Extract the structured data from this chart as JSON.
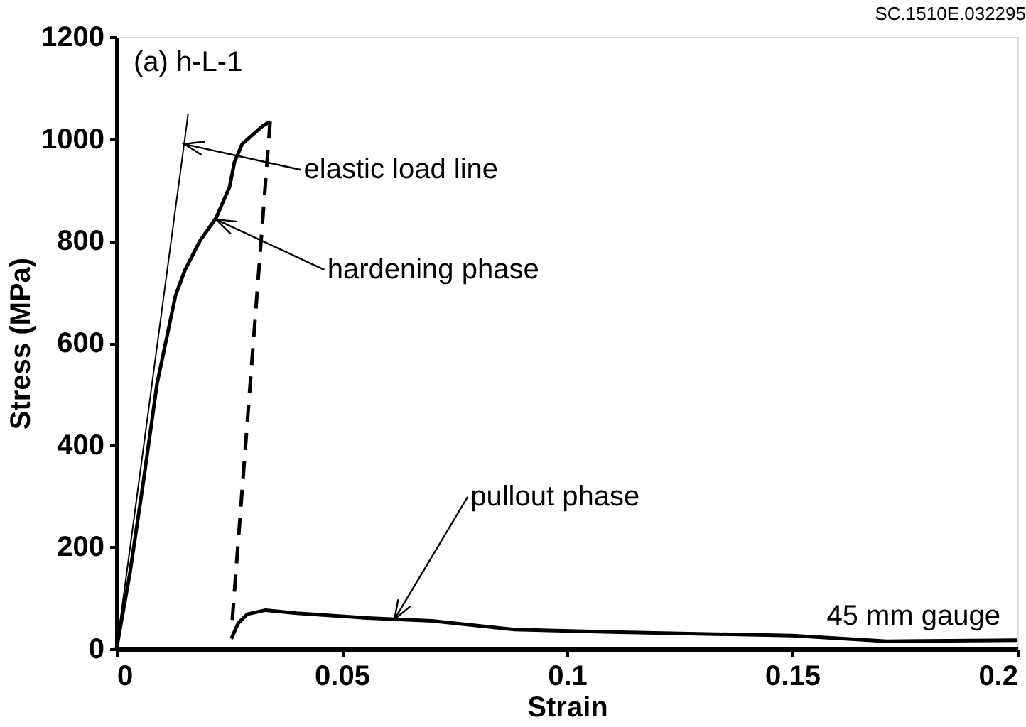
{
  "chart_data": {
    "type": "line",
    "xlabel": "Strain",
    "ylabel": "Stress (MPa)",
    "xlim": [
      0,
      0.2
    ],
    "xticks": [
      0,
      0.05,
      0.1,
      0.15,
      0.2
    ],
    "ylim": [
      0,
      1200
    ],
    "yticks": [
      0,
      200,
      400,
      600,
      800,
      1000,
      1200
    ],
    "grid": false,
    "marker": "none",
    "series": [
      {
        "color": "#000000",
        "line_style": "solid",
        "x": [
          0,
          0.003,
          0.006,
          0.009,
          0.0131,
          0.0152,
          0.0185,
          0.0221,
          0.0251,
          0.0262,
          0.0279,
          0.0324,
          0.0341
        ],
        "values": [
          0,
          150,
          330,
          520,
          693,
          743,
          800,
          845,
          906,
          955,
          990,
          1025,
          1034
        ]
      },
      {
        "color": "#000000",
        "line_style": "dashed",
        "x": [
          0.0341,
          0.0256
        ],
        "values": [
          1034,
          45
        ]
      },
      {
        "color": "#000000",
        "line_style": "solid",
        "x": [
          0.0255,
          0.027,
          0.029,
          0.0331,
          0.04,
          0.0548,
          0.07,
          0.0883,
          0.11,
          0.15,
          0.171,
          0.2
        ],
        "values": [
          20,
          50,
          68,
          76,
          70,
          61,
          55,
          38,
          33,
          26,
          15,
          17
        ]
      },
      {
        "color": "#000000",
        "line_style": "solid",
        "x": [
          0,
          0.0159
        ],
        "values": [
          0,
          1049
        ]
      }
    ],
    "annotations": [
      "(a) h-L-1",
      "45 mm gauge",
      "SC.1510E.032295",
      {
        "text": "elastic load line",
        "x": 0.015,
        "y": 990
      },
      {
        "text": "hardening phase",
        "x": 0.0221,
        "y": 842
      },
      {
        "text": "pullout phase",
        "x": 0.0617,
        "y": 58
      }
    ]
  }
}
